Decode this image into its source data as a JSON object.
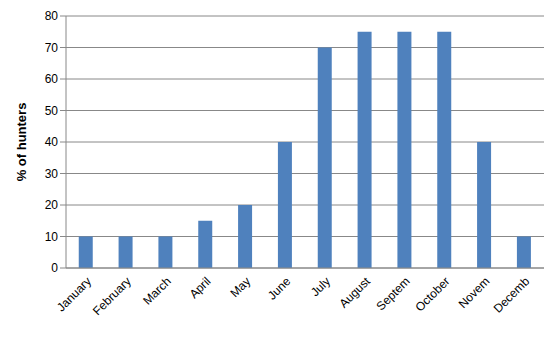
{
  "chart_data": {
    "type": "bar",
    "y_label": "% of hunters",
    "categories": [
      "January",
      "February",
      "March",
      "April",
      "May",
      "June",
      "July",
      "August",
      "Septem",
      "October",
      "Novem",
      "Decemb"
    ],
    "values": [
      10,
      10,
      10,
      15,
      20,
      40,
      70,
      75,
      75,
      75,
      40,
      10
    ],
    "color": "#4f81bd",
    "ylim": [
      0,
      80
    ],
    "yticks": [
      0,
      10,
      20,
      30,
      40,
      50,
      60,
      70,
      80
    ],
    "grid": true
  }
}
